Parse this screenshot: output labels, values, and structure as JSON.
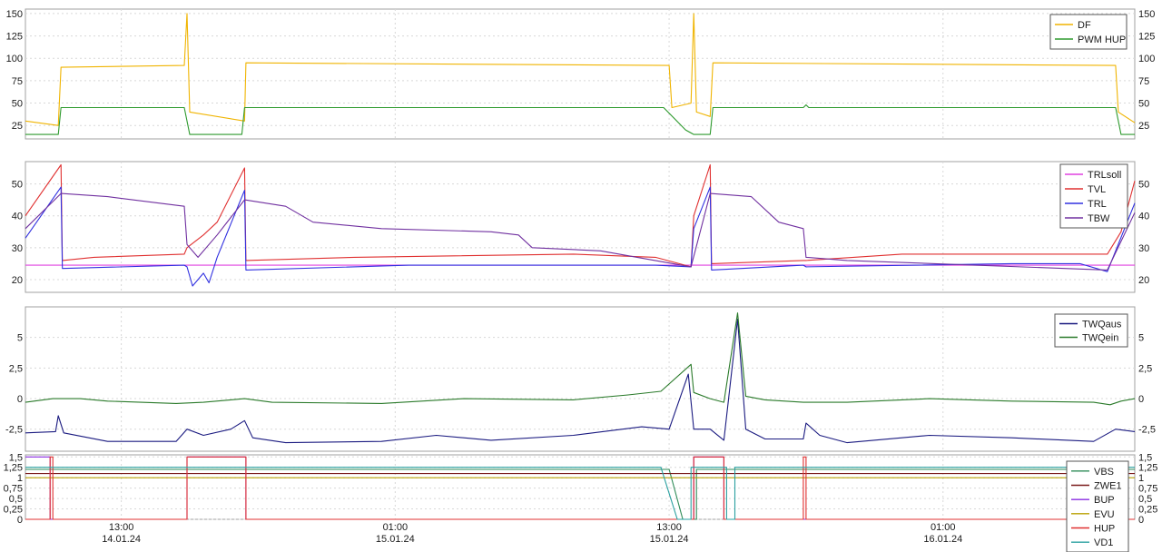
{
  "chart_data": [
    {
      "type": "line",
      "y_ticks": [
        "150",
        "125",
        "100",
        "75",
        "50",
        "25"
      ],
      "ylim": [
        10,
        155
      ],
      "series": [
        {
          "name": "DF",
          "color": "#f0b400",
          "points": [
            [
              0,
              30
            ],
            [
              1.2,
              25
            ],
            [
              1.3,
              90
            ],
            [
              5.8,
              92
            ],
            [
              5.9,
              150
            ],
            [
              6.0,
              40
            ],
            [
              8.0,
              30
            ],
            [
              8.05,
              95
            ],
            [
              23.5,
              92
            ],
            [
              23.6,
              45
            ],
            [
              24.3,
              50
            ],
            [
              24.4,
              150
            ],
            [
              24.5,
              40
            ],
            [
              25.0,
              35
            ],
            [
              25.1,
              95
            ],
            [
              39.8,
              92
            ],
            [
              39.9,
              40
            ],
            [
              40.5,
              28
            ]
          ]
        },
        {
          "name": "PWM HUP",
          "color": "#2e9a2e",
          "points": [
            [
              0,
              15
            ],
            [
              1.2,
              15
            ],
            [
              1.3,
              45
            ],
            [
              5.8,
              45
            ],
            [
              6.0,
              15
            ],
            [
              7.9,
              15
            ],
            [
              8.0,
              45
            ],
            [
              23.3,
              45
            ],
            [
              24.1,
              20
            ],
            [
              24.4,
              15
            ],
            [
              25.0,
              15
            ],
            [
              25.1,
              45
            ],
            [
              28.4,
              45
            ],
            [
              28.5,
              48
            ],
            [
              28.6,
              45
            ],
            [
              39.8,
              45
            ],
            [
              40.0,
              15
            ],
            [
              40.5,
              15
            ]
          ]
        }
      ]
    },
    {
      "type": "line",
      "y_ticks": [
        "50",
        "40",
        "30",
        "20"
      ],
      "ylim": [
        16,
        57
      ],
      "series": [
        {
          "name": "TRLsoll",
          "color": "#e040e0",
          "points": [
            [
              0,
              24.5
            ],
            [
              40.5,
              24.5
            ]
          ]
        },
        {
          "name": "TVL",
          "color": "#e03030",
          "points": [
            [
              0,
              40
            ],
            [
              1.3,
              56
            ],
            [
              1.35,
              26
            ],
            [
              2.5,
              27
            ],
            [
              5.8,
              28
            ],
            [
              5.9,
              30
            ],
            [
              6.5,
              34
            ],
            [
              7.0,
              38
            ],
            [
              8.0,
              55
            ],
            [
              8.05,
              26
            ],
            [
              12,
              27
            ],
            [
              20,
              28
            ],
            [
              23,
              27
            ],
            [
              24.3,
              24
            ],
            [
              24.4,
              40
            ],
            [
              25.0,
              56
            ],
            [
              25.05,
              25
            ],
            [
              28.4,
              26
            ],
            [
              28.5,
              26
            ],
            [
              32,
              28
            ],
            [
              39.5,
              28
            ],
            [
              40.0,
              35
            ],
            [
              40.5,
              51
            ]
          ]
        },
        {
          "name": "TRL",
          "color": "#3030e0",
          "points": [
            [
              0,
              33
            ],
            [
              1.3,
              49
            ],
            [
              1.35,
              23.5
            ],
            [
              5.8,
              24.5
            ],
            [
              5.9,
              24
            ],
            [
              6.1,
              18
            ],
            [
              6.5,
              22
            ],
            [
              6.7,
              19
            ],
            [
              7.0,
              27
            ],
            [
              8.0,
              48
            ],
            [
              8.05,
              23
            ],
            [
              14,
              24.5
            ],
            [
              23,
              24.5
            ],
            [
              24.3,
              24
            ],
            [
              24.4,
              36
            ],
            [
              25.0,
              49
            ],
            [
              25.05,
              23
            ],
            [
              28.4,
              24.5
            ],
            [
              28.5,
              24
            ],
            [
              36,
              25
            ],
            [
              38.5,
              25
            ],
            [
              39.5,
              22.5
            ],
            [
              40.5,
              44
            ]
          ]
        },
        {
          "name": "TBW",
          "color": "#7030a0",
          "points": [
            [
              0,
              36
            ],
            [
              1.3,
              47
            ],
            [
              3.0,
              46
            ],
            [
              5.8,
              43
            ],
            [
              5.9,
              31
            ],
            [
              6.3,
              27
            ],
            [
              7.0,
              34
            ],
            [
              8.0,
              45
            ],
            [
              9.5,
              43
            ],
            [
              10.5,
              38
            ],
            [
              13,
              36
            ],
            [
              17,
              35
            ],
            [
              18,
              34
            ],
            [
              18.5,
              30
            ],
            [
              21,
              29
            ],
            [
              24.3,
              24
            ],
            [
              25.0,
              47
            ],
            [
              26.5,
              46
            ],
            [
              27.5,
              38
            ],
            [
              28.4,
              36
            ],
            [
              28.5,
              27
            ],
            [
              30,
              26
            ],
            [
              39.5,
              23
            ],
            [
              40.5,
              41
            ]
          ]
        }
      ]
    },
    {
      "type": "line",
      "y_ticks": [
        "5",
        "2,5",
        "0",
        "-2,5"
      ],
      "ylim": [
        -4.3,
        7.5
      ],
      "series": [
        {
          "name": "TWQaus",
          "color": "#1a1a80",
          "points": [
            [
              0,
              -2.8
            ],
            [
              1.1,
              -2.7
            ],
            [
              1.2,
              -1.4
            ],
            [
              1.4,
              -2.8
            ],
            [
              3,
              -3.5
            ],
            [
              5.5,
              -3.5
            ],
            [
              5.9,
              -2.5
            ],
            [
              6.5,
              -3.0
            ],
            [
              7.5,
              -2.5
            ],
            [
              8.0,
              -1.8
            ],
            [
              8.3,
              -3.2
            ],
            [
              9.5,
              -3.6
            ],
            [
              13,
              -3.5
            ],
            [
              15,
              -3.0
            ],
            [
              17,
              -3.4
            ],
            [
              20,
              -3.0
            ],
            [
              22.5,
              -2.3
            ],
            [
              23.5,
              -2.5
            ],
            [
              24.2,
              2.0
            ],
            [
              24.4,
              -2.5
            ],
            [
              25.0,
              -2.5
            ],
            [
              25.5,
              -3.4
            ],
            [
              26.0,
              6.5
            ],
            [
              26.3,
              -2.5
            ],
            [
              27.0,
              -3.3
            ],
            [
              28.4,
              -3.3
            ],
            [
              28.5,
              -2.0
            ],
            [
              29,
              -3.0
            ],
            [
              30,
              -3.6
            ],
            [
              33,
              -3.0
            ],
            [
              36,
              -3.2
            ],
            [
              39,
              -3.5
            ],
            [
              39.8,
              -2.5
            ],
            [
              40.5,
              -2.7
            ]
          ]
        },
        {
          "name": "TWQein",
          "color": "#2a7a2a",
          "points": [
            [
              0,
              -0.3
            ],
            [
              1.0,
              0
            ],
            [
              2,
              0
            ],
            [
              3,
              -0.2
            ],
            [
              5.5,
              -0.4
            ],
            [
              6.5,
              -0.3
            ],
            [
              7.5,
              -0.1
            ],
            [
              8.0,
              0
            ],
            [
              9,
              -0.3
            ],
            [
              13,
              -0.4
            ],
            [
              16,
              0
            ],
            [
              20,
              -0.1
            ],
            [
              22,
              0.3
            ],
            [
              23.2,
              0.6
            ],
            [
              24.3,
              2.8
            ],
            [
              24.4,
              0.5
            ],
            [
              25.0,
              0
            ],
            [
              25.5,
              -0.3
            ],
            [
              26.0,
              7.0
            ],
            [
              26.3,
              0.2
            ],
            [
              27,
              -0.1
            ],
            [
              28.4,
              -0.3
            ],
            [
              30,
              -0.3
            ],
            [
              33,
              0
            ],
            [
              36,
              -0.2
            ],
            [
              39,
              -0.3
            ],
            [
              39.6,
              -0.5
            ],
            [
              40,
              -0.2
            ],
            [
              40.5,
              0
            ]
          ]
        }
      ]
    },
    {
      "type": "line",
      "y_ticks": [
        "1,5",
        "1,25",
        "1",
        "0,75",
        "0,5",
        "0,25",
        "0"
      ],
      "ylim": [
        0,
        1.55
      ],
      "x_ticks": [
        {
          "t": 3.5,
          "time": "13:00",
          "date": "14.01.24"
        },
        {
          "t": 13.5,
          "time": "01:00",
          "date": "15.01.24"
        },
        {
          "t": 23.5,
          "time": "13:00",
          "date": "15.01.24"
        },
        {
          "t": 33.5,
          "time": "01:00",
          "date": "16.01.24"
        }
      ],
      "xlim": [
        0,
        40.5
      ],
      "series": [
        {
          "name": "VBS",
          "color": "#2e8b57",
          "points": [
            [
              0,
              1.2
            ],
            [
              23.5,
              1.2
            ],
            [
              24.0,
              0
            ],
            [
              24.5,
              0
            ],
            [
              24.5,
              1.2
            ],
            [
              40.5,
              1.2
            ]
          ]
        },
        {
          "name": "ZWE1",
          "color": "#7a1a1a",
          "points": [
            [
              0,
              1.1
            ],
            [
              40.5,
              1.1
            ]
          ]
        },
        {
          "name": "BUP",
          "color": "#8a2be2",
          "points": [
            [
              0,
              1.5
            ],
            [
              0.9,
              1.5
            ],
            [
              0.9,
              0
            ],
            [
              5.9,
              0
            ],
            [
              5.9,
              1.5
            ],
            [
              8.05,
              1.5
            ],
            [
              8.05,
              0
            ],
            [
              24.4,
              0
            ],
            [
              24.4,
              1.5
            ],
            [
              25.5,
              1.5
            ],
            [
              25.5,
              0
            ],
            [
              40.5,
              0
            ]
          ]
        },
        {
          "name": "EVU",
          "color": "#b8a000",
          "points": [
            [
              0,
              1
            ],
            [
              40.5,
              1
            ]
          ]
        },
        {
          "name": "HUP",
          "color": "#e03030",
          "points": [
            [
              0,
              0
            ],
            [
              0.9,
              0
            ],
            [
              0.9,
              1.5
            ],
            [
              1.0,
              1.5
            ],
            [
              1.0,
              0
            ],
            [
              5.9,
              0
            ],
            [
              5.9,
              1.5
            ],
            [
              8.05,
              1.5
            ],
            [
              8.05,
              0
            ],
            [
              24.4,
              0
            ],
            [
              24.4,
              1.5
            ],
            [
              25.5,
              1.5
            ],
            [
              25.5,
              0
            ],
            [
              28.4,
              0
            ],
            [
              28.4,
              1.5
            ],
            [
              28.5,
              1.5
            ],
            [
              28.5,
              0
            ],
            [
              40.5,
              0
            ]
          ]
        },
        {
          "name": "VD1",
          "color": "#2aa0a0",
          "points": [
            [
              0,
              1.25
            ],
            [
              23.2,
              1.25
            ],
            [
              23.8,
              0
            ],
            [
              24.3,
              0
            ],
            [
              24.3,
              1.25
            ],
            [
              25.6,
              1.25
            ],
            [
              25.6,
              0
            ],
            [
              25.9,
              0
            ],
            [
              25.9,
              1.25
            ],
            [
              40.5,
              1.25
            ]
          ]
        }
      ]
    }
  ]
}
